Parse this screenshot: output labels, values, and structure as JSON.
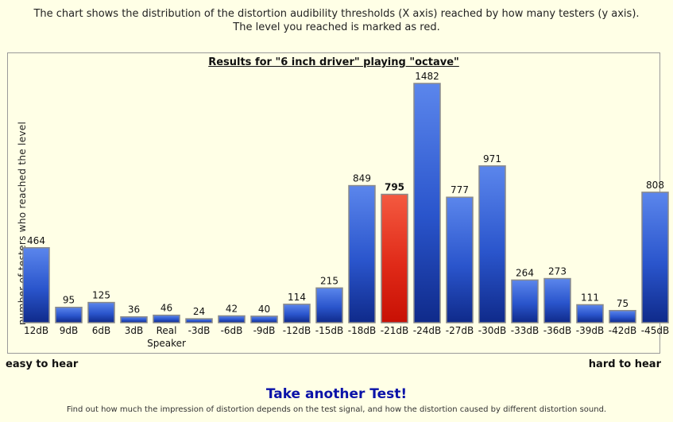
{
  "intro": {
    "line1": "The chart shows the distribution of the distortion audibility thresholds (X axis) reached by how many testers (y axis).",
    "line2": "The level you reached is marked as red."
  },
  "chart_data": {
    "type": "bar",
    "title": "Results for \"6 inch driver\" playing \"octave\"",
    "xlabel": "",
    "ylabel": "number of testers who reached the level",
    "categories": [
      "12dB",
      "9dB",
      "6dB",
      "3dB",
      "Real Speaker",
      "-3dB",
      "-6dB",
      "-9dB",
      "-12dB",
      "-15dB",
      "-18dB",
      "-21dB",
      "-24dB",
      "-27dB",
      "-30dB",
      "-33dB",
      "-36dB",
      "-39dB",
      "-42dB",
      "-45dB"
    ],
    "values": [
      464,
      95,
      125,
      36,
      46,
      24,
      42,
      40,
      114,
      215,
      849,
      795,
      1482,
      777,
      971,
      264,
      273,
      111,
      75,
      808
    ],
    "highlight_category": "-21dB",
    "ylim": [
      0,
      1482
    ],
    "grid": false,
    "colors": {
      "bar": "#2f5fd8",
      "highlight": "#e3301e"
    }
  },
  "axis_notes": {
    "left": "easy to hear",
    "right": "hard to hear"
  },
  "cta": {
    "label": "Take another Test!"
  },
  "footnote": "Find out how much the impression of distortion depends on the test signal, and how the distortion caused by different distortion sound."
}
